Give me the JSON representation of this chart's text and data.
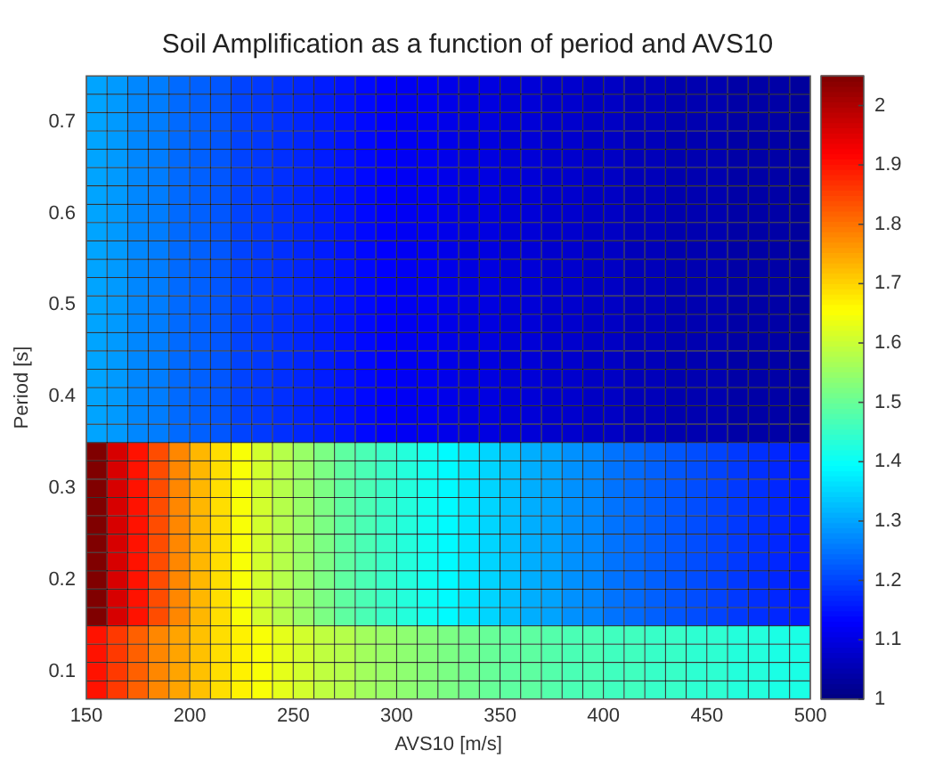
{
  "chart_data": {
    "type": "heatmap",
    "title": "Soil Amplification as a function of period and AVS10",
    "xlabel": "AVS10 [m/s]",
    "ylabel": "Period [s]",
    "x": [
      155,
      165,
      175,
      185,
      195,
      205,
      215,
      225,
      235,
      245,
      255,
      265,
      275,
      285,
      295,
      305,
      315,
      325,
      335,
      345,
      355,
      365,
      375,
      385,
      395,
      405,
      415,
      425,
      435,
      445,
      455,
      465,
      475,
      485,
      495
    ],
    "y": [
      0.74,
      0.72,
      0.7,
      0.68,
      0.66,
      0.64,
      0.62,
      0.6,
      0.58,
      0.56,
      0.54,
      0.52,
      0.5,
      0.48,
      0.46,
      0.44,
      0.42,
      0.4,
      0.38,
      0.36,
      0.34,
      0.32,
      0.3,
      0.28,
      0.26,
      0.24,
      0.22,
      0.2,
      0.18,
      0.16,
      0.14,
      0.12,
      0.1,
      0.08
    ],
    "xlim": [
      150,
      500
    ],
    "xticks": [
      150,
      200,
      250,
      300,
      350,
      400,
      450,
      500
    ],
    "ylim": [
      0.07,
      0.75
    ],
    "yticks": [
      0.1,
      0.2,
      0.3,
      0.4,
      0.5,
      0.6,
      0.7
    ],
    "clim": [
      1,
      2.05
    ],
    "cticks": [
      1,
      1.1,
      1.2,
      1.3,
      1.4,
      1.5,
      1.6,
      1.7,
      1.8,
      1.9,
      2
    ],
    "grid": false,
    "cells": [
      [
        1.3,
        1.29,
        1.27,
        1.26,
        1.24,
        1.23,
        1.22,
        1.2,
        1.19,
        1.18,
        1.17,
        1.16,
        1.15,
        1.14,
        1.13,
        1.12,
        1.12,
        1.11,
        1.1,
        1.1,
        1.09,
        1.09,
        1.08,
        1.08,
        1.07,
        1.07,
        1.06,
        1.06,
        1.05,
        1.05,
        1.05,
        1.04,
        1.04,
        1.04,
        1.03
      ],
      [
        1.3,
        1.29,
        1.27,
        1.26,
        1.24,
        1.23,
        1.22,
        1.2,
        1.19,
        1.18,
        1.17,
        1.16,
        1.15,
        1.14,
        1.13,
        1.12,
        1.12,
        1.11,
        1.1,
        1.1,
        1.09,
        1.09,
        1.08,
        1.08,
        1.07,
        1.07,
        1.06,
        1.06,
        1.05,
        1.05,
        1.05,
        1.04,
        1.04,
        1.04,
        1.03
      ],
      [
        1.3,
        1.29,
        1.27,
        1.26,
        1.24,
        1.23,
        1.22,
        1.2,
        1.19,
        1.18,
        1.17,
        1.16,
        1.15,
        1.14,
        1.13,
        1.12,
        1.12,
        1.11,
        1.1,
        1.1,
        1.09,
        1.09,
        1.08,
        1.08,
        1.07,
        1.07,
        1.06,
        1.06,
        1.05,
        1.05,
        1.05,
        1.04,
        1.04,
        1.04,
        1.03
      ],
      [
        1.3,
        1.29,
        1.27,
        1.26,
        1.24,
        1.23,
        1.22,
        1.2,
        1.19,
        1.18,
        1.17,
        1.16,
        1.15,
        1.14,
        1.13,
        1.12,
        1.12,
        1.11,
        1.1,
        1.1,
        1.09,
        1.09,
        1.08,
        1.08,
        1.07,
        1.07,
        1.06,
        1.06,
        1.05,
        1.05,
        1.05,
        1.04,
        1.04,
        1.04,
        1.03
      ],
      [
        1.3,
        1.29,
        1.27,
        1.26,
        1.24,
        1.23,
        1.22,
        1.2,
        1.19,
        1.18,
        1.17,
        1.16,
        1.15,
        1.14,
        1.13,
        1.12,
        1.12,
        1.11,
        1.1,
        1.1,
        1.09,
        1.09,
        1.08,
        1.08,
        1.07,
        1.07,
        1.06,
        1.06,
        1.05,
        1.05,
        1.05,
        1.04,
        1.04,
        1.04,
        1.03
      ],
      [
        1.3,
        1.29,
        1.27,
        1.26,
        1.24,
        1.23,
        1.22,
        1.2,
        1.19,
        1.18,
        1.17,
        1.16,
        1.15,
        1.14,
        1.13,
        1.12,
        1.12,
        1.11,
        1.1,
        1.1,
        1.09,
        1.09,
        1.08,
        1.08,
        1.07,
        1.07,
        1.06,
        1.06,
        1.05,
        1.05,
        1.05,
        1.04,
        1.04,
        1.04,
        1.03
      ],
      [
        1.3,
        1.29,
        1.27,
        1.26,
        1.24,
        1.23,
        1.22,
        1.2,
        1.19,
        1.18,
        1.17,
        1.16,
        1.15,
        1.14,
        1.13,
        1.12,
        1.12,
        1.11,
        1.1,
        1.1,
        1.09,
        1.09,
        1.08,
        1.08,
        1.07,
        1.07,
        1.06,
        1.06,
        1.05,
        1.05,
        1.05,
        1.04,
        1.04,
        1.04,
        1.03
      ],
      [
        1.3,
        1.29,
        1.27,
        1.26,
        1.24,
        1.23,
        1.22,
        1.2,
        1.19,
        1.18,
        1.17,
        1.16,
        1.15,
        1.14,
        1.13,
        1.12,
        1.12,
        1.11,
        1.1,
        1.1,
        1.09,
        1.09,
        1.08,
        1.08,
        1.07,
        1.07,
        1.06,
        1.06,
        1.05,
        1.05,
        1.05,
        1.04,
        1.04,
        1.04,
        1.03
      ],
      [
        1.3,
        1.29,
        1.27,
        1.26,
        1.24,
        1.23,
        1.22,
        1.2,
        1.19,
        1.18,
        1.17,
        1.16,
        1.15,
        1.14,
        1.13,
        1.12,
        1.12,
        1.11,
        1.1,
        1.1,
        1.09,
        1.09,
        1.08,
        1.08,
        1.07,
        1.07,
        1.06,
        1.06,
        1.05,
        1.05,
        1.05,
        1.04,
        1.04,
        1.04,
        1.03
      ],
      [
        1.3,
        1.29,
        1.27,
        1.26,
        1.24,
        1.23,
        1.22,
        1.2,
        1.19,
        1.18,
        1.17,
        1.16,
        1.15,
        1.14,
        1.13,
        1.12,
        1.12,
        1.11,
        1.1,
        1.1,
        1.09,
        1.09,
        1.08,
        1.08,
        1.07,
        1.07,
        1.06,
        1.06,
        1.05,
        1.05,
        1.05,
        1.04,
        1.04,
        1.04,
        1.03
      ],
      [
        1.3,
        1.29,
        1.27,
        1.26,
        1.24,
        1.23,
        1.22,
        1.2,
        1.19,
        1.18,
        1.17,
        1.16,
        1.15,
        1.14,
        1.13,
        1.12,
        1.12,
        1.11,
        1.1,
        1.1,
        1.09,
        1.09,
        1.08,
        1.08,
        1.07,
        1.07,
        1.06,
        1.06,
        1.05,
        1.05,
        1.05,
        1.04,
        1.04,
        1.04,
        1.03
      ],
      [
        1.3,
        1.29,
        1.27,
        1.26,
        1.24,
        1.23,
        1.22,
        1.2,
        1.19,
        1.18,
        1.17,
        1.16,
        1.15,
        1.14,
        1.13,
        1.12,
        1.12,
        1.11,
        1.1,
        1.1,
        1.09,
        1.09,
        1.08,
        1.08,
        1.07,
        1.07,
        1.06,
        1.06,
        1.05,
        1.05,
        1.05,
        1.04,
        1.04,
        1.04,
        1.03
      ],
      [
        1.3,
        1.29,
        1.27,
        1.26,
        1.24,
        1.23,
        1.22,
        1.2,
        1.19,
        1.18,
        1.17,
        1.16,
        1.15,
        1.14,
        1.13,
        1.12,
        1.12,
        1.11,
        1.1,
        1.1,
        1.09,
        1.09,
        1.08,
        1.08,
        1.07,
        1.07,
        1.06,
        1.06,
        1.05,
        1.05,
        1.05,
        1.04,
        1.04,
        1.04,
        1.03
      ],
      [
        1.3,
        1.29,
        1.27,
        1.26,
        1.24,
        1.23,
        1.22,
        1.2,
        1.19,
        1.18,
        1.17,
        1.16,
        1.15,
        1.14,
        1.13,
        1.12,
        1.12,
        1.11,
        1.1,
        1.1,
        1.09,
        1.09,
        1.08,
        1.08,
        1.07,
        1.07,
        1.06,
        1.06,
        1.05,
        1.05,
        1.05,
        1.04,
        1.04,
        1.04,
        1.03
      ],
      [
        1.3,
        1.29,
        1.27,
        1.26,
        1.24,
        1.23,
        1.22,
        1.2,
        1.19,
        1.18,
        1.17,
        1.16,
        1.15,
        1.14,
        1.13,
        1.12,
        1.12,
        1.11,
        1.1,
        1.1,
        1.09,
        1.09,
        1.08,
        1.08,
        1.07,
        1.07,
        1.06,
        1.06,
        1.05,
        1.05,
        1.05,
        1.04,
        1.04,
        1.04,
        1.03
      ],
      [
        1.3,
        1.29,
        1.27,
        1.26,
        1.24,
        1.23,
        1.22,
        1.2,
        1.19,
        1.18,
        1.17,
        1.16,
        1.15,
        1.14,
        1.13,
        1.12,
        1.12,
        1.11,
        1.1,
        1.1,
        1.09,
        1.09,
        1.08,
        1.08,
        1.07,
        1.07,
        1.06,
        1.06,
        1.05,
        1.05,
        1.05,
        1.04,
        1.04,
        1.04,
        1.03
      ],
      [
        1.3,
        1.29,
        1.27,
        1.26,
        1.24,
        1.23,
        1.22,
        1.2,
        1.19,
        1.18,
        1.17,
        1.16,
        1.15,
        1.14,
        1.13,
        1.12,
        1.12,
        1.11,
        1.1,
        1.1,
        1.09,
        1.09,
        1.08,
        1.08,
        1.07,
        1.07,
        1.06,
        1.06,
        1.05,
        1.05,
        1.05,
        1.04,
        1.04,
        1.04,
        1.03
      ],
      [
        1.3,
        1.29,
        1.27,
        1.26,
        1.24,
        1.23,
        1.22,
        1.2,
        1.19,
        1.18,
        1.17,
        1.16,
        1.15,
        1.14,
        1.13,
        1.12,
        1.12,
        1.11,
        1.1,
        1.1,
        1.09,
        1.09,
        1.08,
        1.08,
        1.07,
        1.07,
        1.06,
        1.06,
        1.05,
        1.05,
        1.05,
        1.04,
        1.04,
        1.04,
        1.03
      ],
      [
        1.3,
        1.29,
        1.27,
        1.26,
        1.24,
        1.23,
        1.22,
        1.2,
        1.19,
        1.18,
        1.17,
        1.16,
        1.15,
        1.14,
        1.13,
        1.12,
        1.12,
        1.11,
        1.1,
        1.1,
        1.09,
        1.09,
        1.08,
        1.08,
        1.07,
        1.07,
        1.06,
        1.06,
        1.05,
        1.05,
        1.05,
        1.04,
        1.04,
        1.04,
        1.03
      ],
      [
        1.3,
        1.29,
        1.27,
        1.26,
        1.24,
        1.23,
        1.22,
        1.2,
        1.19,
        1.18,
        1.17,
        1.16,
        1.15,
        1.14,
        1.13,
        1.12,
        1.12,
        1.11,
        1.1,
        1.1,
        1.09,
        1.09,
        1.08,
        1.08,
        1.07,
        1.07,
        1.06,
        1.06,
        1.05,
        1.05,
        1.05,
        1.04,
        1.04,
        1.04,
        1.03
      ],
      [
        2.05,
        1.96,
        1.9,
        1.84,
        1.78,
        1.73,
        1.69,
        1.65,
        1.61,
        1.58,
        1.55,
        1.52,
        1.49,
        1.47,
        1.45,
        1.43,
        1.41,
        1.39,
        1.37,
        1.35,
        1.33,
        1.31,
        1.3,
        1.28,
        1.27,
        1.25,
        1.24,
        1.23,
        1.22,
        1.21,
        1.2,
        1.19,
        1.18,
        1.17,
        1.16
      ],
      [
        2.05,
        1.96,
        1.9,
        1.84,
        1.78,
        1.73,
        1.69,
        1.65,
        1.61,
        1.58,
        1.55,
        1.52,
        1.49,
        1.47,
        1.45,
        1.43,
        1.41,
        1.39,
        1.37,
        1.35,
        1.33,
        1.31,
        1.3,
        1.28,
        1.27,
        1.25,
        1.24,
        1.23,
        1.22,
        1.21,
        1.2,
        1.19,
        1.18,
        1.17,
        1.16
      ],
      [
        2.05,
        1.96,
        1.9,
        1.84,
        1.78,
        1.73,
        1.69,
        1.65,
        1.61,
        1.58,
        1.55,
        1.52,
        1.49,
        1.47,
        1.45,
        1.43,
        1.41,
        1.39,
        1.37,
        1.35,
        1.33,
        1.31,
        1.3,
        1.28,
        1.27,
        1.25,
        1.24,
        1.23,
        1.22,
        1.21,
        1.2,
        1.19,
        1.18,
        1.17,
        1.16
      ],
      [
        2.05,
        1.96,
        1.9,
        1.84,
        1.78,
        1.73,
        1.69,
        1.65,
        1.61,
        1.58,
        1.55,
        1.52,
        1.49,
        1.47,
        1.45,
        1.43,
        1.41,
        1.39,
        1.37,
        1.35,
        1.33,
        1.31,
        1.3,
        1.28,
        1.27,
        1.25,
        1.24,
        1.23,
        1.22,
        1.21,
        1.2,
        1.19,
        1.18,
        1.17,
        1.16
      ],
      [
        2.05,
        1.96,
        1.9,
        1.84,
        1.78,
        1.73,
        1.69,
        1.65,
        1.61,
        1.58,
        1.55,
        1.52,
        1.49,
        1.47,
        1.45,
        1.43,
        1.41,
        1.39,
        1.37,
        1.35,
        1.33,
        1.31,
        1.3,
        1.28,
        1.27,
        1.25,
        1.24,
        1.23,
        1.22,
        1.21,
        1.2,
        1.19,
        1.18,
        1.17,
        1.16
      ],
      [
        2.05,
        1.96,
        1.9,
        1.84,
        1.78,
        1.73,
        1.69,
        1.65,
        1.61,
        1.58,
        1.55,
        1.52,
        1.49,
        1.47,
        1.45,
        1.43,
        1.41,
        1.39,
        1.37,
        1.35,
        1.33,
        1.31,
        1.3,
        1.28,
        1.27,
        1.25,
        1.24,
        1.23,
        1.22,
        1.21,
        1.2,
        1.19,
        1.18,
        1.17,
        1.16
      ],
      [
        2.05,
        1.96,
        1.9,
        1.84,
        1.78,
        1.73,
        1.69,
        1.65,
        1.61,
        1.58,
        1.55,
        1.52,
        1.49,
        1.47,
        1.45,
        1.43,
        1.41,
        1.39,
        1.37,
        1.35,
        1.33,
        1.31,
        1.3,
        1.28,
        1.27,
        1.25,
        1.24,
        1.23,
        1.22,
        1.21,
        1.2,
        1.19,
        1.18,
        1.17,
        1.16
      ],
      [
        2.05,
        1.96,
        1.9,
        1.84,
        1.78,
        1.73,
        1.69,
        1.65,
        1.61,
        1.58,
        1.55,
        1.52,
        1.49,
        1.47,
        1.45,
        1.43,
        1.41,
        1.39,
        1.37,
        1.35,
        1.33,
        1.31,
        1.3,
        1.28,
        1.27,
        1.25,
        1.24,
        1.23,
        1.22,
        1.21,
        1.2,
        1.19,
        1.18,
        1.17,
        1.16
      ],
      [
        2.05,
        1.96,
        1.9,
        1.84,
        1.78,
        1.73,
        1.69,
        1.65,
        1.61,
        1.58,
        1.55,
        1.52,
        1.49,
        1.47,
        1.45,
        1.43,
        1.41,
        1.39,
        1.37,
        1.35,
        1.33,
        1.31,
        1.3,
        1.28,
        1.27,
        1.25,
        1.24,
        1.23,
        1.22,
        1.21,
        1.2,
        1.19,
        1.18,
        1.17,
        1.16
      ],
      [
        2.05,
        1.96,
        1.9,
        1.84,
        1.78,
        1.73,
        1.69,
        1.65,
        1.61,
        1.58,
        1.55,
        1.52,
        1.49,
        1.47,
        1.45,
        1.43,
        1.41,
        1.39,
        1.37,
        1.35,
        1.33,
        1.31,
        1.3,
        1.28,
        1.27,
        1.25,
        1.24,
        1.23,
        1.22,
        1.21,
        1.2,
        1.19,
        1.18,
        1.17,
        1.16
      ],
      [
        1.9,
        1.86,
        1.82,
        1.78,
        1.75,
        1.72,
        1.69,
        1.67,
        1.65,
        1.63,
        1.61,
        1.59,
        1.58,
        1.56,
        1.55,
        1.54,
        1.53,
        1.52,
        1.51,
        1.5,
        1.49,
        1.49,
        1.48,
        1.47,
        1.47,
        1.46,
        1.46,
        1.45,
        1.45,
        1.44,
        1.44,
        1.43,
        1.43,
        1.42,
        1.42
      ],
      [
        1.9,
        1.86,
        1.82,
        1.78,
        1.75,
        1.72,
        1.69,
        1.67,
        1.65,
        1.63,
        1.61,
        1.59,
        1.58,
        1.56,
        1.55,
        1.54,
        1.53,
        1.52,
        1.51,
        1.5,
        1.49,
        1.49,
        1.48,
        1.47,
        1.47,
        1.46,
        1.46,
        1.45,
        1.45,
        1.44,
        1.44,
        1.43,
        1.43,
        1.42,
        1.42
      ],
      [
        1.9,
        1.86,
        1.82,
        1.78,
        1.75,
        1.72,
        1.69,
        1.67,
        1.65,
        1.63,
        1.61,
        1.59,
        1.58,
        1.56,
        1.55,
        1.54,
        1.53,
        1.52,
        1.51,
        1.5,
        1.49,
        1.49,
        1.48,
        1.47,
        1.47,
        1.46,
        1.46,
        1.45,
        1.45,
        1.44,
        1.44,
        1.43,
        1.43,
        1.42,
        1.42
      ],
      [
        1.9,
        1.86,
        1.82,
        1.78,
        1.75,
        1.72,
        1.69,
        1.67,
        1.65,
        1.63,
        1.61,
        1.59,
        1.58,
        1.56,
        1.55,
        1.54,
        1.53,
        1.52,
        1.51,
        1.5,
        1.49,
        1.49,
        1.48,
        1.47,
        1.47,
        1.46,
        1.46,
        1.45,
        1.45,
        1.44,
        1.44,
        1.43,
        1.43,
        1.42,
        1.42
      ]
    ]
  }
}
